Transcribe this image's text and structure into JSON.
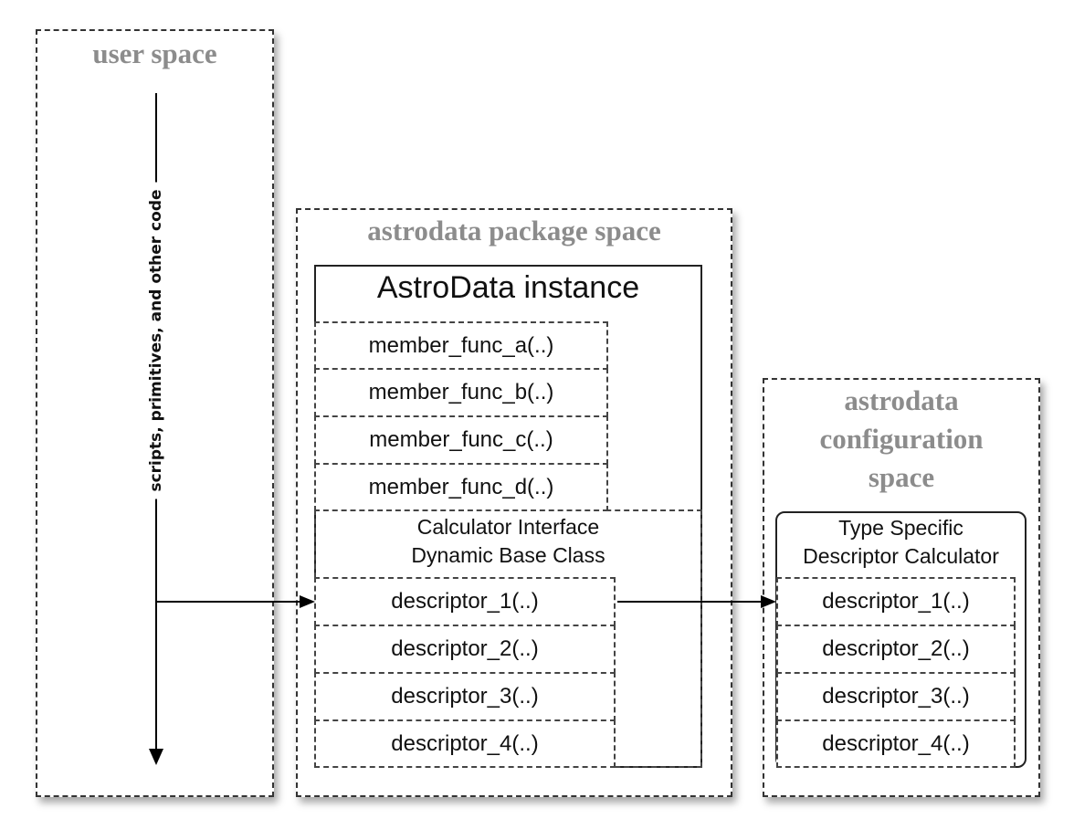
{
  "panels": {
    "user": {
      "title": "user space",
      "flow_label": "scripts, primitives, and other code"
    },
    "package": {
      "title": "astrodata package space"
    },
    "config": {
      "title_lines": [
        "astrodata",
        "configuration",
        "space"
      ]
    }
  },
  "instance": {
    "title": "AstroData instance",
    "member_functions": [
      "member_func_a(..)",
      "member_func_b(..)",
      "member_func_c(..)",
      "member_func_d(..)"
    ],
    "calculator_interface": {
      "line1": "Calculator Interface",
      "line2": "Dynamic Base Class"
    },
    "descriptors": [
      "descriptor_1(..)",
      "descriptor_2(..)",
      "descriptor_3(..)",
      "descriptor_4(..)"
    ]
  },
  "calculator": {
    "title_line1": "Type Specific",
    "title_line2": "Descriptor Calculator",
    "descriptors": [
      "descriptor_1(..)",
      "descriptor_2(..)",
      "descriptor_3(..)",
      "descriptor_4(..)"
    ]
  }
}
